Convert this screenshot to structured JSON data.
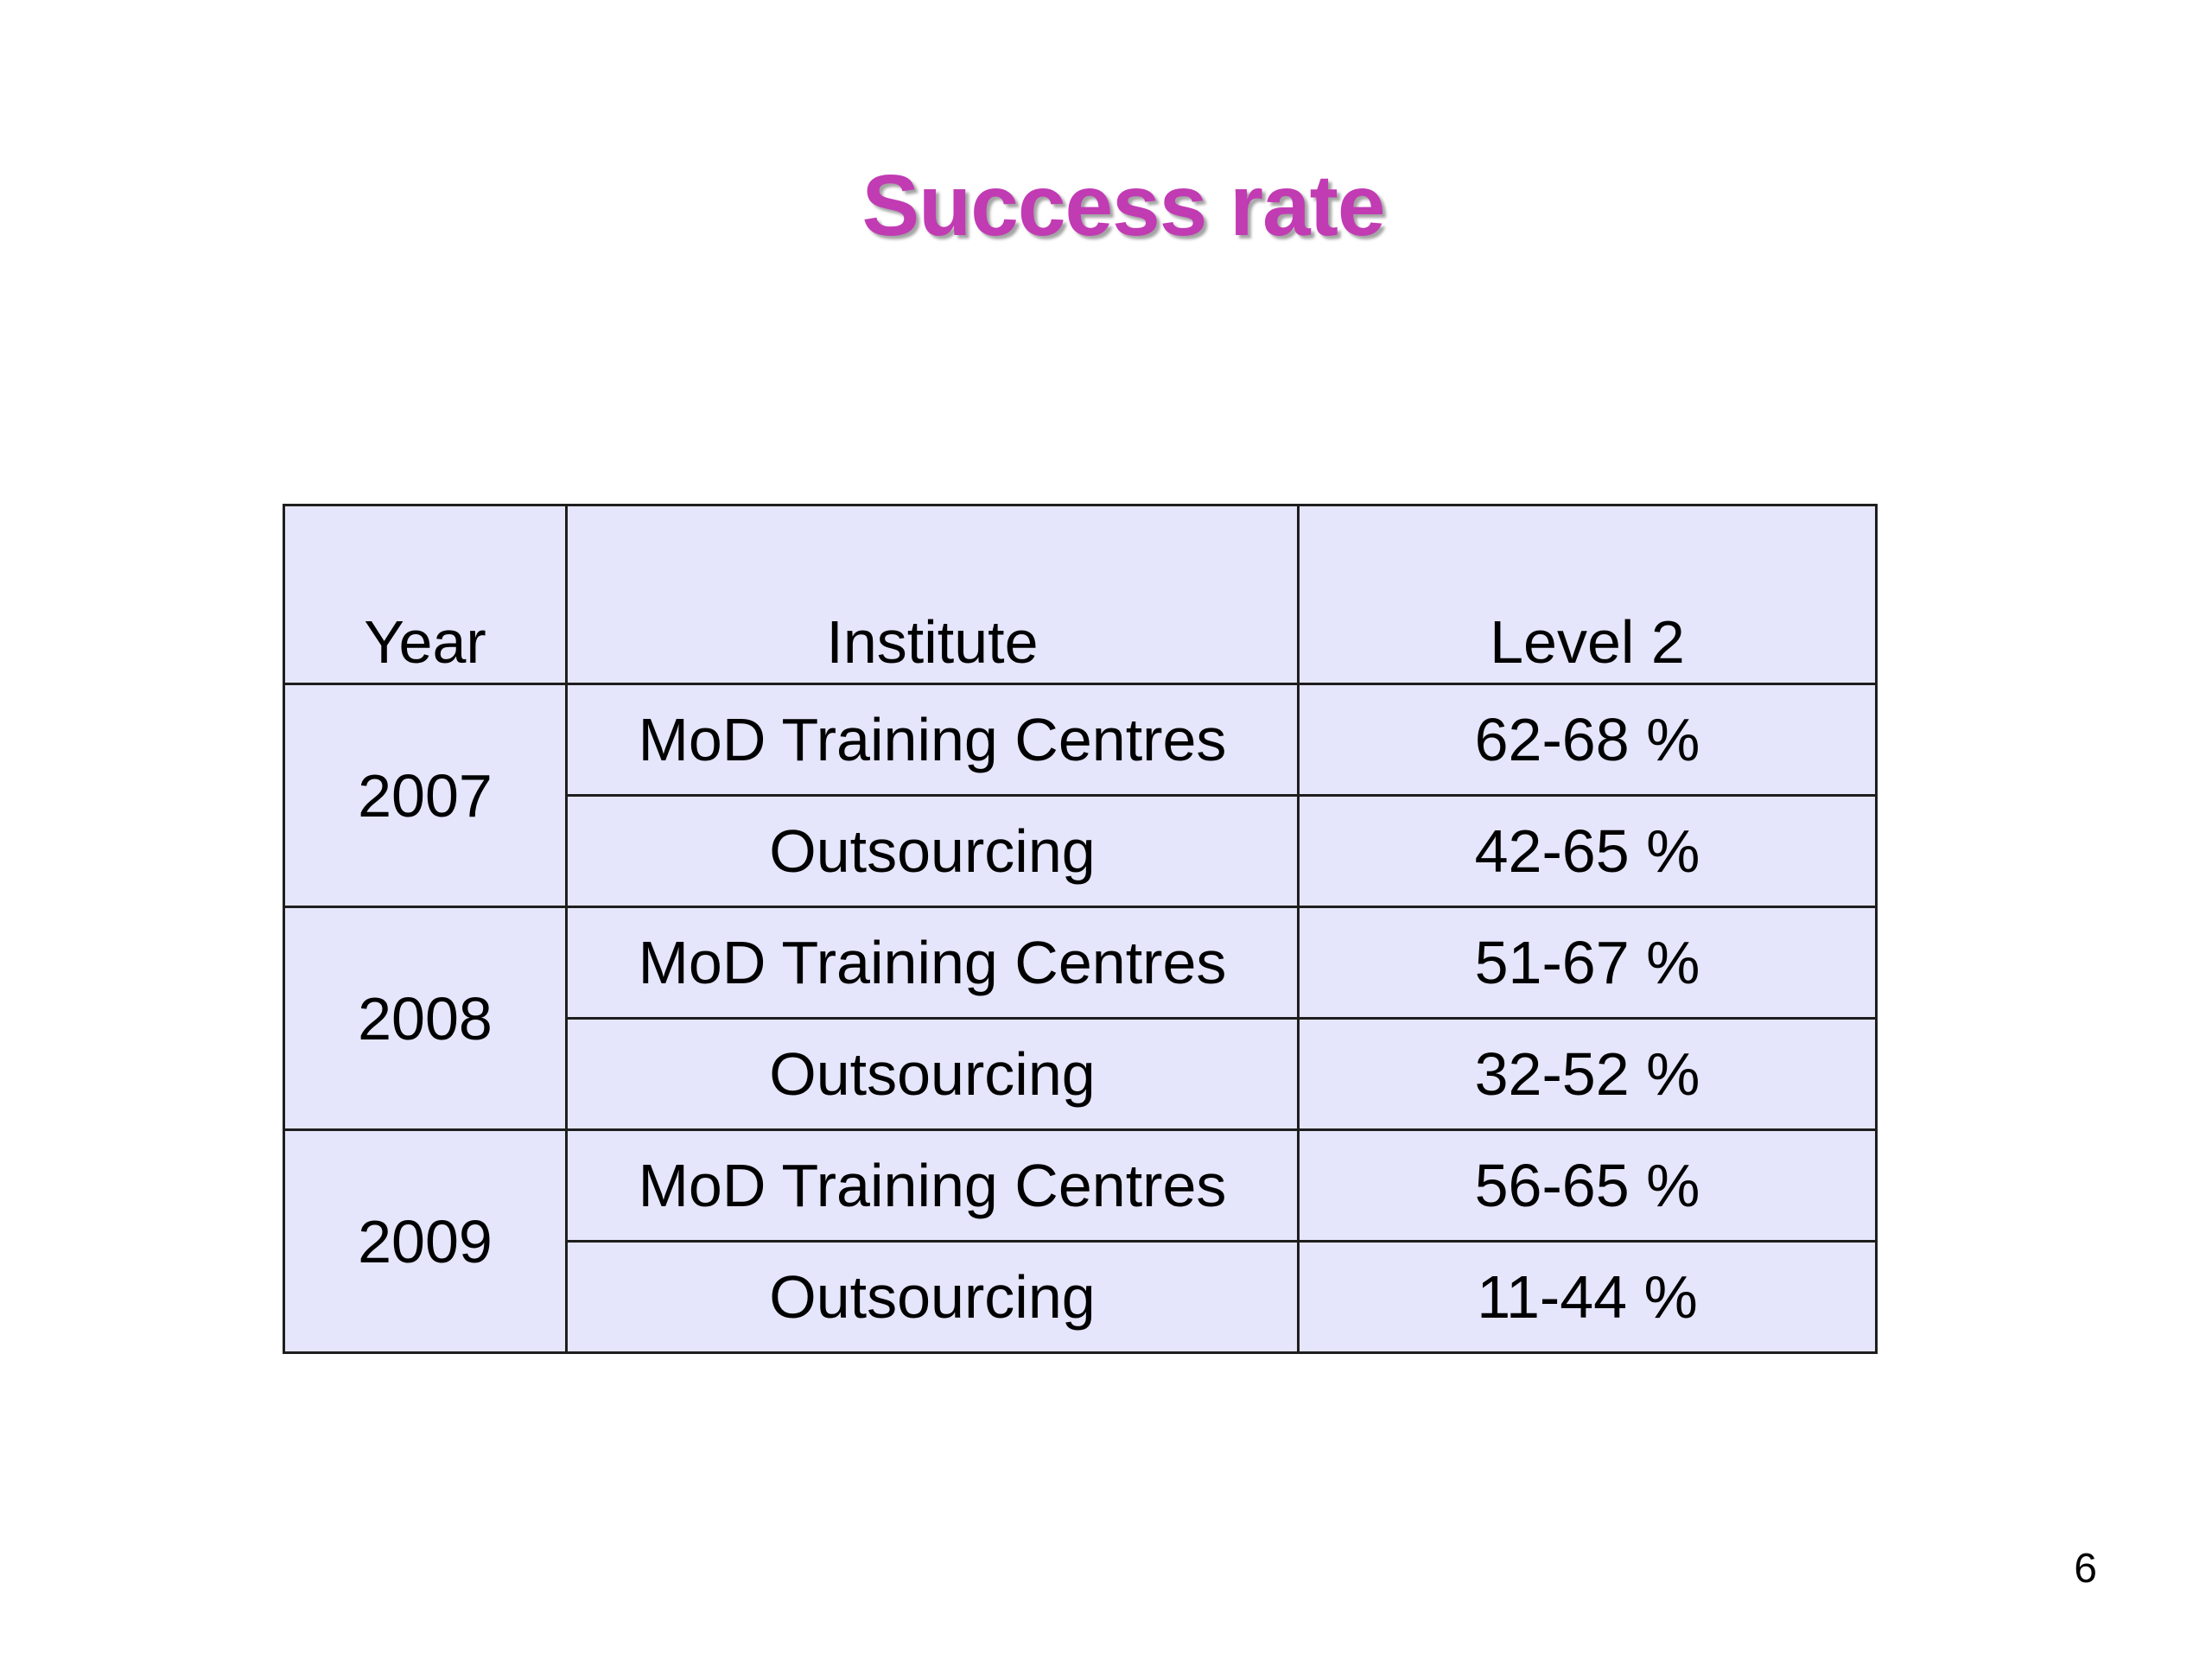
{
  "slide": {
    "title": "Success rate",
    "page_number": "6"
  },
  "table": {
    "headers": {
      "year": "Year",
      "institute": "Institute",
      "level": "Level 2"
    },
    "groups": [
      {
        "year": "2007",
        "rows": [
          {
            "institute": "MoD Training Centres",
            "level": "62-68 %"
          },
          {
            "institute": "Outsourcing",
            "level": "42-65 %"
          }
        ]
      },
      {
        "year": "2008",
        "rows": [
          {
            "institute": "MoD Training Centres",
            "level": "51-67 %"
          },
          {
            "institute": "Outsourcing",
            "level": "32-52 %"
          }
        ]
      },
      {
        "year": "2009",
        "rows": [
          {
            "institute": "MoD Training Centres",
            "level": "56-65 %"
          },
          {
            "institute": "Outsourcing",
            "level": "11-44 %"
          }
        ]
      }
    ]
  }
}
